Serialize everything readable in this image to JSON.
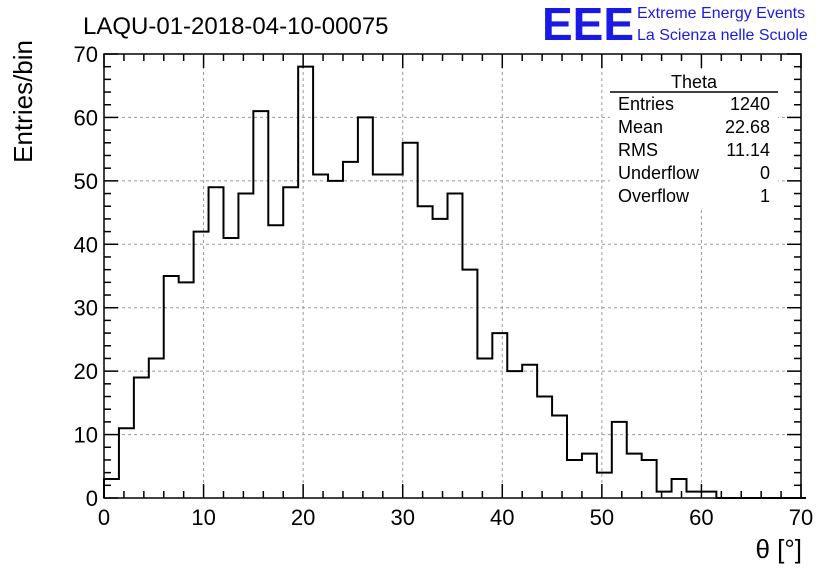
{
  "chart_data": {
    "type": "bar",
    "title": "LAQU-01-2018-04-10-00075",
    "xlabel": "θ [°]",
    "ylabel": "Entries/bin",
    "xlim": [
      0,
      70
    ],
    "ylim": [
      0,
      70
    ],
    "x_ticks": [
      0,
      10,
      20,
      30,
      40,
      50,
      60,
      70
    ],
    "y_ticks": [
      0,
      10,
      20,
      30,
      40,
      50,
      60,
      70
    ],
    "grid": true,
    "bin_width": 1.5,
    "bin_start": 0,
    "values": [
      3,
      11,
      19,
      22,
      35,
      34,
      42,
      49,
      41,
      48,
      61,
      43,
      49,
      68,
      51,
      50,
      53,
      60,
      51,
      51,
      56,
      46,
      44,
      48,
      36,
      22,
      26,
      20,
      21,
      16,
      13,
      6,
      7,
      4,
      12,
      7,
      6,
      1,
      3,
      1,
      1,
      0,
      0,
      0,
      0,
      0,
      0
    ]
  },
  "logo": {
    "mark": "EEE",
    "line1": "Extreme Energy Events",
    "line2": "La Scienza nelle Scuole",
    "color": "#1a1ae6"
  },
  "stats": {
    "title": "Theta",
    "rows": [
      {
        "label": "Entries",
        "value": "1240"
      },
      {
        "label": "Mean",
        "value": "22.68"
      },
      {
        "label": "RMS",
        "value": "11.14"
      },
      {
        "label": "Underflow",
        "value": "0"
      },
      {
        "label": "Overflow",
        "value": "1"
      }
    ]
  }
}
